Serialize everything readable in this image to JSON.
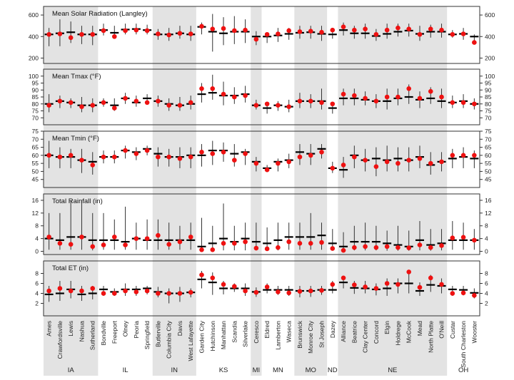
{
  "colors": {
    "shade": "#e3e3e3",
    "point": "#ee1111",
    "bar": "#000000",
    "whisker": "#333333",
    "frame": "#333333"
  },
  "chart_data": {
    "type": "dot-range",
    "sites": [
      "Ames",
      "Crawfordsville",
      "Lewis",
      "Nashua",
      "Sutherland",
      "Bondville",
      "Freeport",
      "Olney",
      "Peoria",
      "Springfield",
      "Butlerville",
      "Columbia City",
      "Davis",
      "West Lafayette",
      "Garden City",
      "Hutchinson",
      "Manhattan",
      "Scandia",
      "Silverlake",
      "Ceresco",
      "Eldred",
      "Lamberton",
      "Waseca",
      "Brunswick",
      "Monroe City",
      "St Joseph",
      "Dazey",
      "Alliance",
      "Beatrice",
      "Clay Center",
      "Concord",
      "Elgin",
      "Holdrege",
      "McCook",
      "Mead",
      "North Platte",
      "O'Neill",
      "Custar",
      "South Charleston",
      "Wooster"
    ],
    "states": [
      {
        "name": "IA",
        "start": 0,
        "end": 4,
        "shaded": true
      },
      {
        "name": "IL",
        "start": 5,
        "end": 9,
        "shaded": false
      },
      {
        "name": "IN",
        "start": 10,
        "end": 13,
        "shaded": true
      },
      {
        "name": "KS",
        "start": 14,
        "end": 18,
        "shaded": false
      },
      {
        "name": "MI",
        "start": 19,
        "end": 19,
        "shaded": true
      },
      {
        "name": "MN",
        "start": 20,
        "end": 22,
        "shaded": false
      },
      {
        "name": "MO",
        "start": 23,
        "end": 25,
        "shaded": true
      },
      {
        "name": "ND",
        "start": 26,
        "end": 26,
        "shaded": false
      },
      {
        "name": "NE",
        "start": 27,
        "end": 36,
        "shaded": true
      },
      {
        "name": "OH",
        "start": 37,
        "end": 39,
        "shaded": false
      }
    ],
    "panels": [
      {
        "title": "Mean Solar Radiation (Langley)",
        "ylim": [
          150,
          680
        ],
        "ticks": [
          200,
          400,
          600
        ],
        "tick_labels": [
          "200",
          "400",
          "600"
        ],
        "point": [
          420,
          425,
          390,
          420,
          420,
          455,
          400,
          455,
          460,
          455,
          425,
          415,
          430,
          425,
          495,
          470,
          475,
          455,
          460,
          375,
          420,
          425,
          455,
          445,
          450,
          440,
          460,
          490,
          460,
          470,
          420,
          460,
          480,
          470,
          420,
          470,
          460,
          420,
          425,
          345
        ],
        "median": [
          420,
          430,
          440,
          420,
          420,
          460,
          435,
          465,
          470,
          460,
          420,
          420,
          430,
          420,
          490,
          445,
          430,
          445,
          445,
          400,
          400,
          410,
          425,
          435,
          440,
          425,
          420,
          460,
          430,
          430,
          405,
          425,
          445,
          455,
          425,
          445,
          445,
          420,
          425,
          400
        ],
        "low": [
          310,
          310,
          340,
          330,
          320,
          410,
          390,
          420,
          420,
          420,
          370,
          360,
          380,
          360,
          420,
          260,
          320,
          330,
          340,
          320,
          340,
          350,
          370,
          380,
          380,
          360,
          380,
          410,
          380,
          380,
          360,
          380,
          400,
          400,
          360,
          390,
          390,
          390,
          370,
          330
        ],
        "high": [
          480,
          560,
          540,
          500,
          500,
          520,
          500,
          520,
          520,
          510,
          470,
          480,
          500,
          500,
          530,
          610,
          580,
          590,
          560,
          450,
          440,
          480,
          480,
          500,
          500,
          500,
          460,
          530,
          500,
          520,
          470,
          520,
          520,
          520,
          500,
          510,
          520,
          460,
          480,
          420
        ]
      },
      {
        "title": "Mean Tmax (°F)",
        "ylim": [
          65,
          105
        ],
        "ticks": [
          70,
          75,
          80,
          85,
          90,
          95,
          100
        ],
        "tick_labels": [
          "70",
          "75",
          "80",
          "85",
          "90",
          "95",
          "100"
        ],
        "point": [
          79,
          82,
          81,
          78,
          79,
          81,
          77,
          84,
          82,
          81,
          82,
          79,
          79,
          81,
          91,
          91,
          87,
          85,
          86,
          79,
          80,
          79,
          78,
          82,
          82,
          81,
          80,
          87,
          86,
          84,
          82,
          85,
          85,
          91,
          84,
          89,
          85,
          81,
          81,
          80
        ],
        "median": [
          80,
          82,
          81,
          79,
          79,
          81,
          79,
          84,
          81,
          84,
          82,
          80,
          79,
          80,
          87,
          88,
          86,
          86,
          87,
          79,
          77,
          79,
          78,
          82,
          82,
          82,
          77,
          84,
          84,
          83,
          82,
          82,
          84,
          85,
          83,
          84,
          82,
          81,
          82,
          80
        ],
        "low": [
          74,
          77,
          77,
          74,
          74,
          78,
          75,
          80,
          78,
          80,
          78,
          75,
          75,
          76,
          81,
          83,
          79,
          80,
          81,
          76,
          73,
          75,
          74,
          77,
          77,
          76,
          73,
          79,
          79,
          79,
          77,
          76,
          79,
          80,
          77,
          80,
          77,
          77,
          77,
          76
        ],
        "high": [
          87,
          86,
          84,
          85,
          84,
          84,
          84,
          88,
          86,
          87,
          86,
          84,
          85,
          86,
          95,
          101,
          96,
          92,
          93,
          83,
          81,
          82,
          83,
          88,
          87,
          91,
          81,
          91,
          91,
          89,
          87,
          91,
          91,
          94,
          89,
          92,
          91,
          86,
          87,
          84
        ]
      },
      {
        "title": "Mean Tmin (°F)",
        "ylim": [
          40,
          75
        ],
        "ticks": [
          45,
          50,
          55,
          60,
          65,
          70,
          75
        ],
        "tick_labels": [
          "45",
          "50",
          "55",
          "60",
          "65",
          "70",
          "75"
        ],
        "point": [
          60,
          59,
          60,
          57,
          54,
          59,
          59,
          63,
          61,
          63,
          59,
          59,
          58,
          59,
          62,
          61,
          62,
          57,
          61,
          55,
          51,
          55,
          56,
          59,
          60,
          62,
          52,
          54,
          59,
          57,
          53,
          56,
          55,
          57,
          58,
          55,
          56,
          60,
          60,
          60
        ],
        "median": [
          60,
          59,
          59,
          57,
          56,
          59,
          59,
          63,
          62,
          64,
          61,
          59,
          59,
          60,
          60,
          63,
          63,
          61,
          62,
          56,
          52,
          56,
          57,
          62,
          61,
          64,
          52,
          51,
          60,
          57,
          58,
          57,
          58,
          57,
          59,
          54,
          56,
          58,
          59,
          58
        ],
        "low": [
          52,
          52,
          52,
          49,
          48,
          55,
          55,
          58,
          57,
          60,
          53,
          53,
          52,
          52,
          53,
          54,
          56,
          53,
          54,
          50,
          50,
          50,
          52,
          54,
          54,
          58,
          49,
          46,
          52,
          50,
          47,
          50,
          50,
          50,
          52,
          48,
          50,
          52,
          52,
          52
        ],
        "high": [
          69,
          65,
          64,
          64,
          62,
          63,
          63,
          66,
          65,
          66,
          65,
          64,
          65,
          65,
          67,
          69,
          68,
          67,
          64,
          59,
          54,
          58,
          61,
          67,
          67,
          67,
          56,
          59,
          66,
          64,
          65,
          66,
          65,
          65,
          66,
          62,
          62,
          64,
          65,
          63
        ]
      },
      {
        "title": "Total Rainfall (in)",
        "ylim": [
          -1,
          18
        ],
        "ticks": [
          0,
          4,
          8,
          12,
          16
        ],
        "tick_labels": [
          "0",
          "4",
          "8",
          "12",
          "16"
        ],
        "point": [
          4.5,
          2.5,
          2.2,
          4.5,
          1.5,
          2,
          4.5,
          2,
          4,
          4,
          5,
          2.2,
          3,
          4.5,
          0.5,
          0.5,
          2.5,
          2.5,
          3,
          1,
          0.8,
          1.2,
          3,
          2.5,
          2.5,
          2.8,
          0.9,
          0.3,
          1.2,
          1.5,
          1.2,
          1.5,
          1.2,
          1.1,
          2,
          1.2,
          1.8,
          4.2,
          4.4,
          3.5
        ],
        "median": [
          4,
          3.5,
          4.5,
          4.5,
          3.5,
          3.5,
          3.5,
          3,
          4,
          3.5,
          3.5,
          3.5,
          3.5,
          3.5,
          1.5,
          2.5,
          4,
          3,
          4,
          3,
          2.5,
          3.5,
          4.5,
          4.5,
          4.5,
          5,
          2.5,
          1.5,
          3,
          3,
          3,
          2.5,
          2,
          1.5,
          3.5,
          2,
          2.5,
          3.5,
          3.5,
          3.5
        ],
        "low": [
          0.5,
          0.5,
          0.5,
          0.5,
          0.3,
          0.5,
          0.5,
          0.5,
          0.5,
          0.5,
          0.5,
          0.5,
          0.5,
          0.5,
          0.1,
          0.1,
          0.3,
          0.3,
          0.3,
          0.3,
          0.3,
          0.3,
          0.5,
          0.5,
          0.5,
          0.5,
          0.2,
          0.1,
          0.3,
          0.3,
          0.3,
          0.2,
          0.2,
          0.2,
          0.3,
          0.2,
          0.3,
          0.5,
          0.5,
          0.5
        ],
        "high": [
          12,
          12,
          16,
          16,
          12,
          12,
          10,
          14,
          9,
          10,
          10,
          9,
          8,
          9,
          10.5,
          8,
          15,
          8,
          9,
          9,
          7.5,
          9,
          9,
          9,
          12,
          9,
          7,
          6,
          8,
          9,
          8,
          6.5,
          8,
          6.5,
          9.5,
          7,
          7,
          9.5,
          9,
          7
        ]
      },
      {
        "title": "Total ET (in)",
        "ylim": [
          -0.5,
          10.5
        ],
        "ticks": [
          2,
          4,
          6,
          8
        ],
        "tick_labels": [
          "2",
          "4",
          "6",
          "8"
        ],
        "point": [
          4.5,
          5,
          4.5,
          4.5,
          5,
          4,
          4,
          4.5,
          4.3,
          4.5,
          4,
          4,
          4,
          4.2,
          7.7,
          7.1,
          5.8,
          5.4,
          4.5,
          4.2,
          5.3,
          4.3,
          4.1,
          4.4,
          4.5,
          4.6,
          5.8,
          7.1,
          5.7,
          5.3,
          5,
          6,
          5.8,
          8.3,
          5.2,
          7.1,
          5.8,
          4,
          4.1,
          3.6
        ],
        "median": [
          3.8,
          4,
          4.8,
          3.8,
          4,
          4.8,
          4.3,
          4.8,
          4.8,
          5,
          4.3,
          4,
          4,
          4.2,
          6.8,
          6.2,
          5,
          5,
          5,
          4.3,
          4.7,
          4.7,
          4.7,
          4.5,
          4.5,
          4.7,
          4.7,
          6.2,
          5.1,
          5,
          4.8,
          5,
          6,
          6,
          4.5,
          5.7,
          5.5,
          4.8,
          4.7,
          4.1
        ],
        "low": [
          2.3,
          2.5,
          3,
          2.5,
          2.8,
          3.5,
          3.5,
          3.5,
          3.5,
          3.8,
          3.2,
          2,
          2.3,
          3.2,
          5,
          3.7,
          3.8,
          4.3,
          3.5,
          3.3,
          4,
          3.7,
          3.5,
          3.2,
          3.3,
          3.7,
          4,
          5,
          3.9,
          4,
          3.6,
          3.5,
          4,
          4,
          3.5,
          4.3,
          4,
          3.5,
          3.6,
          3
        ],
        "high": [
          5.5,
          6.5,
          6.5,
          5.5,
          5.5,
          5.5,
          5,
          6,
          5.5,
          5.5,
          5.3,
          5,
          5.3,
          5,
          8.5,
          8.2,
          6.5,
          6,
          6,
          5.2,
          6,
          5.5,
          5.5,
          5.5,
          5.5,
          5.5,
          6.5,
          7.5,
          6.5,
          6.5,
          6,
          7,
          7,
          8.5,
          6.2,
          7.7,
          7,
          5.5,
          5.5,
          5
        ]
      }
    ]
  }
}
